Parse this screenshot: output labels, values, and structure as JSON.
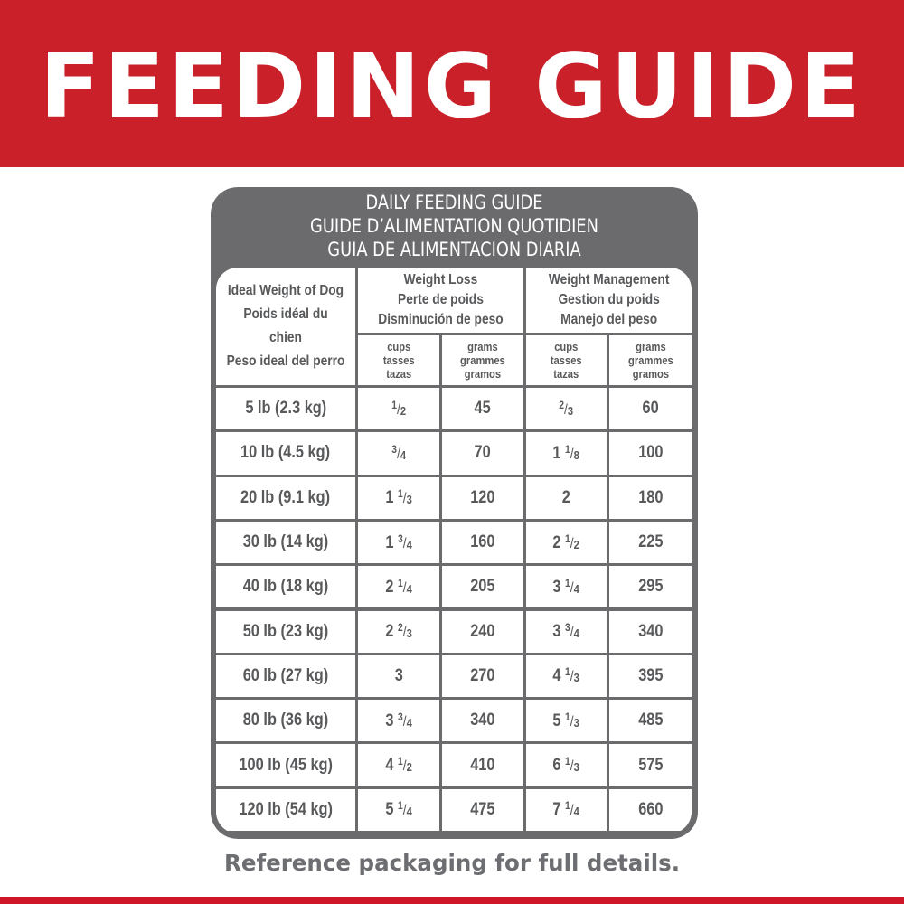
{
  "banner": {
    "title": "FEEDING GUIDE"
  },
  "panel": {
    "title_lines": [
      "DAILY FEEDING GUIDE",
      "GUIDE D’ALIMENTATION QUOTIDIEN",
      "GUIA DE ALIMENTACION DIARIA"
    ]
  },
  "table": {
    "weight_header": [
      "Ideal Weight of Dog",
      "Poids idéal du chien",
      "Peso ideal del perro"
    ],
    "groups": [
      {
        "label": [
          "Weight Loss",
          "Perte de poids",
          "Disminución de peso"
        ]
      },
      {
        "label": [
          "Weight Management",
          "Gestion du poids",
          "Manejo del peso"
        ]
      }
    ],
    "units": {
      "cups": [
        "cups",
        "tasses",
        "tazas"
      ],
      "grams": [
        "grams",
        "grammes",
        "gramos"
      ]
    },
    "rows": [
      {
        "weight": "5 lb (2.3 kg)",
        "loss_cups": {
          "whole": "",
          "num": "1",
          "den": "2"
        },
        "loss_grams": "45",
        "mgmt_cups": {
          "whole": "",
          "num": "2",
          "den": "3"
        },
        "mgmt_grams": "60"
      },
      {
        "weight": "10 lb (4.5 kg)",
        "loss_cups": {
          "whole": "",
          "num": "3",
          "den": "4"
        },
        "loss_grams": "70",
        "mgmt_cups": {
          "whole": "1",
          "num": "1",
          "den": "8"
        },
        "mgmt_grams": "100"
      },
      {
        "weight": "20 lb (9.1 kg)",
        "loss_cups": {
          "whole": "1",
          "num": "1",
          "den": "3"
        },
        "loss_grams": "120",
        "mgmt_cups": {
          "whole": "2",
          "num": "",
          "den": ""
        },
        "mgmt_grams": "180"
      },
      {
        "weight": "30 lb (14 kg)",
        "loss_cups": {
          "whole": "1",
          "num": "3",
          "den": "4"
        },
        "loss_grams": "160",
        "mgmt_cups": {
          "whole": "2",
          "num": "1",
          "den": "2"
        },
        "mgmt_grams": "225"
      },
      {
        "weight": "40 lb (18 kg)",
        "loss_cups": {
          "whole": "2",
          "num": "1",
          "den": "4"
        },
        "loss_grams": "205",
        "mgmt_cups": {
          "whole": "3",
          "num": "1",
          "den": "4"
        },
        "mgmt_grams": "295"
      },
      {
        "weight": "50 lb (23 kg)",
        "loss_cups": {
          "whole": "2",
          "num": "2",
          "den": "3"
        },
        "loss_grams": "240",
        "mgmt_cups": {
          "whole": "3",
          "num": "3",
          "den": "4"
        },
        "mgmt_grams": "340"
      },
      {
        "weight": "60 lb (27 kg)",
        "loss_cups": {
          "whole": "3",
          "num": "",
          "den": ""
        },
        "loss_grams": "270",
        "mgmt_cups": {
          "whole": "4",
          "num": "1",
          "den": "3"
        },
        "mgmt_grams": "395"
      },
      {
        "weight": "80 lb (36 kg)",
        "loss_cups": {
          "whole": "3",
          "num": "3",
          "den": "4"
        },
        "loss_grams": "340",
        "mgmt_cups": {
          "whole": "5",
          "num": "1",
          "den": "3"
        },
        "mgmt_grams": "485"
      },
      {
        "weight": "100 lb (45 kg)",
        "loss_cups": {
          "whole": "4",
          "num": "1",
          "den": "2"
        },
        "loss_grams": "410",
        "mgmt_cups": {
          "whole": "6",
          "num": "1",
          "den": "3"
        },
        "mgmt_grams": "575"
      },
      {
        "weight": "120 lb (54 kg)",
        "loss_cups": {
          "whole": "5",
          "num": "1",
          "den": "4"
        },
        "loss_grams": "475",
        "mgmt_cups": {
          "whole": "7",
          "num": "1",
          "den": "4"
        },
        "mgmt_grams": "660"
      }
    ]
  },
  "footnote": "Reference packaging for full details.",
  "colors": {
    "brand_red": "#c9202a",
    "panel_gray": "#6b6b6d",
    "text_gray": "#58595b"
  }
}
